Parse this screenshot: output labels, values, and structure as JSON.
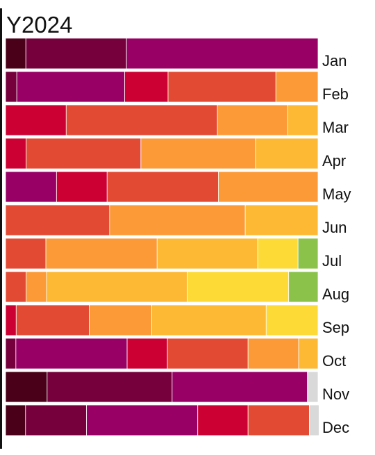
{
  "chart_data": {
    "type": "bar",
    "orientation": "horizontal",
    "stacked": "percent",
    "title": "Y2024",
    "xlabel": "",
    "ylabel": "",
    "xlim": [
      0,
      100
    ],
    "grid": false,
    "legend": "none",
    "categories": [
      "Jan",
      "Feb",
      "Mar",
      "Apr",
      "May",
      "Jun",
      "Jul",
      "Aug",
      "Sep",
      "Oct",
      "Nov",
      "Dec"
    ],
    "series": [
      {
        "color": "#4a0018",
        "values": [
          6.5,
          0,
          0,
          0,
          0,
          0,
          0,
          0,
          0,
          0,
          13.3,
          6.4
        ]
      },
      {
        "color": "#75003c",
        "values": [
          32.2,
          3.6,
          0,
          0,
          0,
          0,
          0,
          0,
          0,
          3.3,
          40.0,
          19.5
        ]
      },
      {
        "color": "#990066",
        "values": [
          61.3,
          34.5,
          0,
          0,
          16.3,
          0,
          0,
          0,
          0,
          35.6,
          43.3,
          35.6
        ]
      },
      {
        "color": "#cc0033",
        "values": [
          0,
          13.9,
          19.4,
          6.6,
          16.2,
          0,
          0,
          0,
          3.4,
          12.9,
          0,
          16.1
        ]
      },
      {
        "color": "#e34a33",
        "values": [
          0,
          34.5,
          48.4,
          36.7,
          35.6,
          33.3,
          12.9,
          6.6,
          23.4,
          25.8,
          0,
          19.6
        ]
      },
      {
        "color": "#fd9a38",
        "values": [
          0,
          13.5,
          22.5,
          36.7,
          31.9,
          43.4,
          35.6,
          6.5,
          20.0,
          16.2,
          0,
          0
        ]
      },
      {
        "color": "#feb934",
        "values": [
          0,
          0,
          9.7,
          20.0,
          0,
          23.3,
          32.2,
          45.0,
          36.6,
          6.2,
          0,
          0
        ]
      },
      {
        "color": "#fdda36",
        "values": [
          0,
          0,
          0,
          0,
          0,
          0,
          12.9,
          32.5,
          16.6,
          0,
          0,
          0
        ]
      },
      {
        "color": "#8bc34a",
        "values": [
          0,
          0,
          0,
          0,
          0,
          0,
          6.4,
          9.4,
          0,
          0,
          0,
          0
        ]
      },
      {
        "color": "#d9d9d9",
        "values": [
          0,
          0,
          0,
          0,
          0,
          0,
          0,
          0,
          0,
          0,
          3.4,
          3.1
        ]
      }
    ]
  }
}
